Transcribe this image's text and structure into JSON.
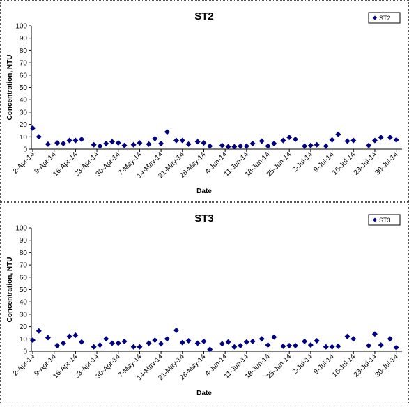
{
  "chart_data": [
    {
      "type": "scatter",
      "title": "ST2",
      "x_label": "Date",
      "y_label": "Concentration, NTU",
      "legend": "upper right",
      "x": [
        "2014-04-02",
        "2014-04-04",
        "2014-04-07",
        "2014-04-10",
        "2014-04-12",
        "2014-04-14",
        "2014-04-16",
        "2014-04-18",
        "2014-04-22",
        "2014-04-24",
        "2014-04-26",
        "2014-04-28",
        "2014-04-30",
        "2014-05-02",
        "2014-05-05",
        "2014-05-07",
        "2014-05-10",
        "2014-05-12",
        "2014-05-14",
        "2014-05-16",
        "2014-05-19",
        "2014-05-21",
        "2014-05-23",
        "2014-05-26",
        "2014-05-28",
        "2014-05-30",
        "2014-06-03",
        "2014-06-05",
        "2014-06-07",
        "2014-06-09",
        "2014-06-11",
        "2014-06-13",
        "2014-06-16",
        "2014-06-18",
        "2014-06-20",
        "2014-06-23",
        "2014-06-25",
        "2014-06-27",
        "2014-06-30",
        "2014-07-02",
        "2014-07-04",
        "2014-07-07",
        "2014-07-09",
        "2014-07-11",
        "2014-07-14",
        "2014-07-16",
        "2014-07-21",
        "2014-07-23",
        "2014-07-25",
        "2014-07-28",
        "2014-07-30"
      ],
      "series": [
        {
          "name": "ST2",
          "color": "#000080",
          "values": [
            17,
            10,
            4,
            5,
            4.5,
            7,
            7,
            8,
            3.5,
            2.5,
            4.5,
            6,
            5,
            3,
            3.5,
            5,
            4,
            8.5,
            4.5,
            14,
            7,
            7,
            4,
            6,
            5,
            2.5,
            3,
            2,
            2,
            2.5,
            2.5,
            4.5,
            6.5,
            2.5,
            4.5,
            7,
            9.5,
            8,
            2.5,
            3,
            3.5,
            2.5,
            7.5,
            12,
            6.5,
            7,
            3,
            7,
            9.5,
            9.5,
            7.5
          ]
        }
      ],
      "xlim": [
        "2014-04-02",
        "2014-07-31"
      ],
      "xticks": [
        {
          "value": "2014-04-02",
          "label": "2-Apr-14"
        },
        {
          "value": "2014-04-09",
          "label": "9-Apr-14"
        },
        {
          "value": "2014-04-16",
          "label": "16-Apr-14"
        },
        {
          "value": "2014-04-23",
          "label": "23-Apr-14"
        },
        {
          "value": "2014-04-30",
          "label": "30-Apr-14"
        },
        {
          "value": "2014-05-07",
          "label": "7-May-14"
        },
        {
          "value": "2014-05-14",
          "label": "14-May-14"
        },
        {
          "value": "2014-05-21",
          "label": "21-May-14"
        },
        {
          "value": "2014-05-28",
          "label": "28-May-14"
        },
        {
          "value": "2014-06-04",
          "label": "4-Jun-14"
        },
        {
          "value": "2014-06-11",
          "label": "11-Jun-14"
        },
        {
          "value": "2014-06-18",
          "label": "18-Jun-14"
        },
        {
          "value": "2014-06-25",
          "label": "25-Jun-14"
        },
        {
          "value": "2014-07-02",
          "label": "2-Jul-14"
        },
        {
          "value": "2014-07-09",
          "label": "9-Jul-14"
        },
        {
          "value": "2014-07-16",
          "label": "16-Jul-14"
        },
        {
          "value": "2014-07-23",
          "label": "23-Jul-14"
        },
        {
          "value": "2014-07-30",
          "label": "30-Jul-14"
        }
      ],
      "ylim": [
        0,
        100
      ],
      "yticks": [
        0,
        10,
        20,
        30,
        40,
        50,
        60,
        70,
        80,
        90,
        100
      ]
    },
    {
      "type": "scatter",
      "title": "ST3",
      "x_label": "Date",
      "y_label": "Concentration, NTU",
      "legend": "upper right",
      "x": [
        "2014-04-02",
        "2014-04-04",
        "2014-04-07",
        "2014-04-10",
        "2014-04-12",
        "2014-04-14",
        "2014-04-16",
        "2014-04-18",
        "2014-04-22",
        "2014-04-24",
        "2014-04-26",
        "2014-04-28",
        "2014-04-30",
        "2014-05-02",
        "2014-05-05",
        "2014-05-07",
        "2014-05-10",
        "2014-05-12",
        "2014-05-14",
        "2014-05-16",
        "2014-05-19",
        "2014-05-21",
        "2014-05-23",
        "2014-05-26",
        "2014-05-28",
        "2014-05-30",
        "2014-06-03",
        "2014-06-05",
        "2014-06-07",
        "2014-06-09",
        "2014-06-11",
        "2014-06-13",
        "2014-06-16",
        "2014-06-18",
        "2014-06-20",
        "2014-06-23",
        "2014-06-25",
        "2014-06-27",
        "2014-06-30",
        "2014-07-02",
        "2014-07-04",
        "2014-07-07",
        "2014-07-09",
        "2014-07-11",
        "2014-07-14",
        "2014-07-16",
        "2014-07-21",
        "2014-07-23",
        "2014-07-25",
        "2014-07-28",
        "2014-07-30"
      ],
      "series": [
        {
          "name": "ST3",
          "color": "#000080",
          "values": [
            9,
            16.5,
            11,
            4.5,
            6.5,
            12,
            13,
            7.5,
            3.5,
            5,
            10,
            6.5,
            6.5,
            8,
            3.5,
            3.5,
            6.5,
            9,
            6,
            10,
            17,
            7,
            8.5,
            6.5,
            8,
            1.5,
            6,
            7.5,
            3.5,
            4.5,
            7.5,
            8,
            10,
            5,
            11.5,
            4,
            4.5,
            4.5,
            8,
            5,
            8.5,
            3.5,
            3.5,
            4,
            12,
            10,
            4.5,
            14,
            5,
            10,
            3
          ]
        }
      ],
      "xlim": [
        "2014-04-02",
        "2014-07-31"
      ],
      "xticks": [
        {
          "value": "2014-04-02",
          "label": "2-Apr-14"
        },
        {
          "value": "2014-04-09",
          "label": "9-Apr-14"
        },
        {
          "value": "2014-04-16",
          "label": "16-Apr-14"
        },
        {
          "value": "2014-04-23",
          "label": "23-Apr-14"
        },
        {
          "value": "2014-04-30",
          "label": "30-Apr-14"
        },
        {
          "value": "2014-05-07",
          "label": "7-May-14"
        },
        {
          "value": "2014-05-14",
          "label": "14-May-14"
        },
        {
          "value": "2014-05-21",
          "label": "21-May-14"
        },
        {
          "value": "2014-05-28",
          "label": "28-May-14"
        },
        {
          "value": "2014-06-04",
          "label": "4-Jun-14"
        },
        {
          "value": "2014-06-11",
          "label": "11-Jun-14"
        },
        {
          "value": "2014-06-18",
          "label": "18-Jun-14"
        },
        {
          "value": "2014-06-25",
          "label": "25-Jun-14"
        },
        {
          "value": "2014-07-02",
          "label": "2-Jul-14"
        },
        {
          "value": "2014-07-09",
          "label": "9-Jul-14"
        },
        {
          "value": "2014-07-16",
          "label": "16-Jul-14"
        },
        {
          "value": "2014-07-23",
          "label": "23-Jul-14"
        },
        {
          "value": "2014-07-30",
          "label": "30-Jul-14"
        }
      ],
      "ylim": [
        0,
        100
      ],
      "yticks": [
        0,
        10,
        20,
        30,
        40,
        50,
        60,
        70,
        80,
        90,
        100
      ]
    }
  ]
}
